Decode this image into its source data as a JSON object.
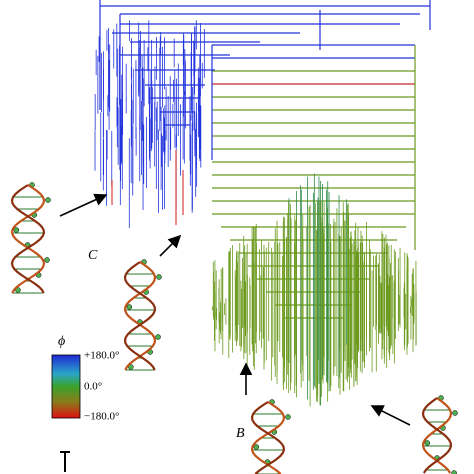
{
  "colorbar": {
    "title": "ϕ",
    "labels": [
      "+180.0°",
      "0.0°",
      "−180.0°"
    ]
  },
  "annotations": {
    "labels": [
      "C",
      "B"
    ]
  }
}
